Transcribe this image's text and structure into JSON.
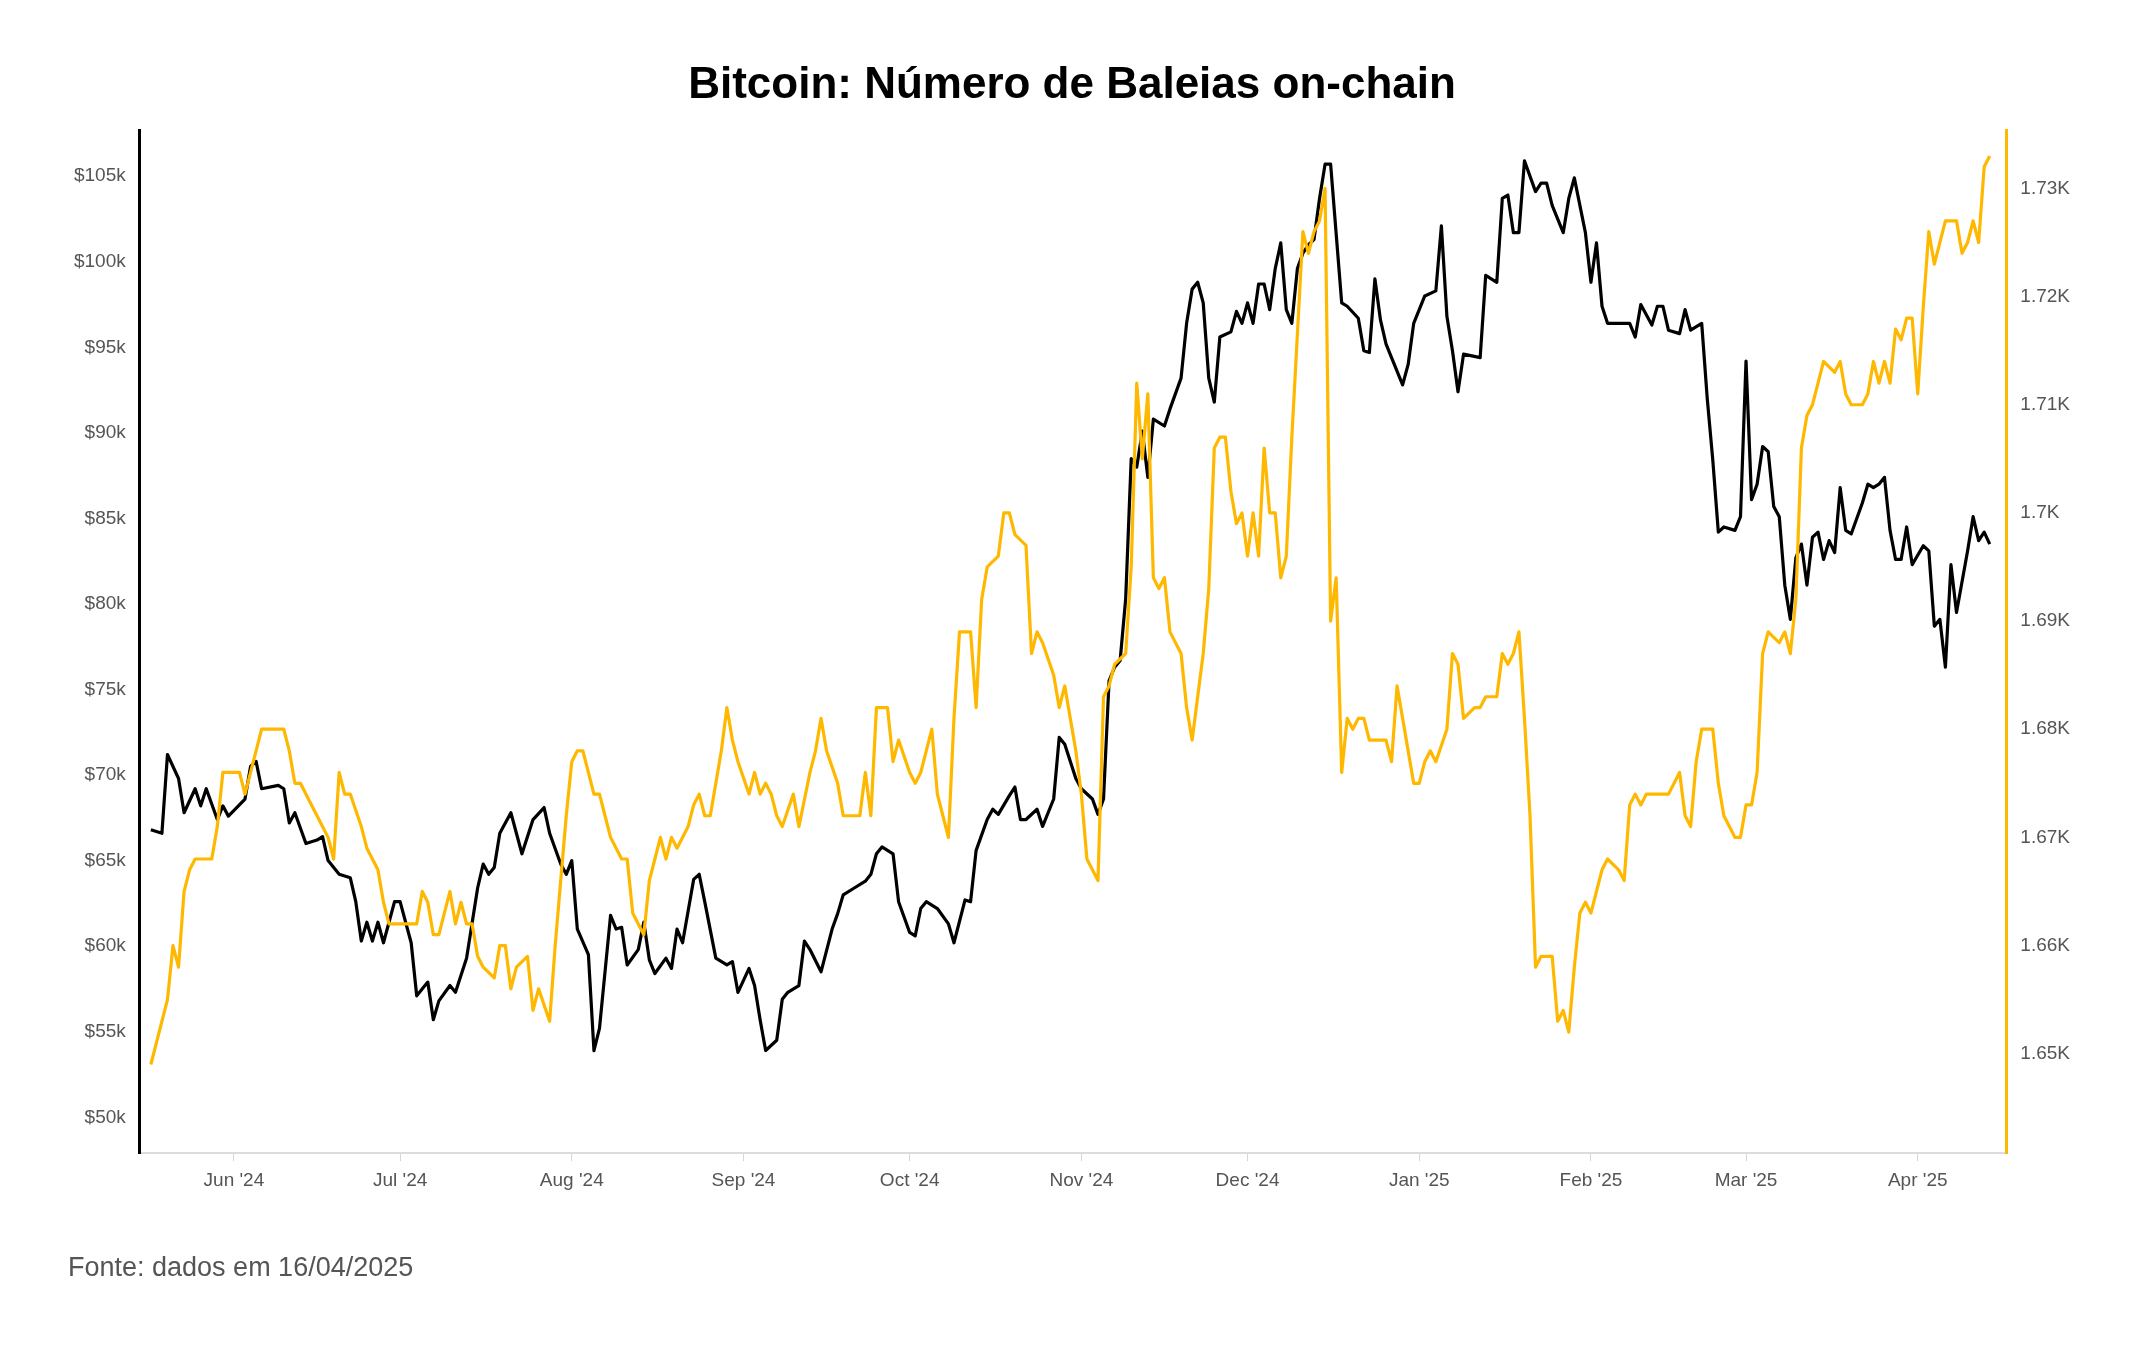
{
  "chart_data": {
    "type": "line",
    "title": "Bitcoin: Número de Baleias on-chain",
    "annotations": [
      "Fonte: dados em 16/04/2025"
    ],
    "xlim": [
      "2024-05-15",
      "2025-04-17"
    ],
    "xticks": [
      {
        "value": "2024-06-01",
        "label": "Jun '24"
      },
      {
        "value": "2024-07-01",
        "label": "Jul '24"
      },
      {
        "value": "2024-08-01",
        "label": "Aug '24"
      },
      {
        "value": "2024-09-01",
        "label": "Sep '24"
      },
      {
        "value": "2024-10-01",
        "label": "Oct '24"
      },
      {
        "value": "2024-11-01",
        "label": "Nov '24"
      },
      {
        "value": "2024-12-01",
        "label": "Dec '24"
      },
      {
        "value": "2025-01-01",
        "label": "Jan '25"
      },
      {
        "value": "2025-02-01",
        "label": "Feb '25"
      },
      {
        "value": "2025-03-01",
        "label": "Mar '25"
      },
      {
        "value": "2025-04-01",
        "label": "Apr '25"
      }
    ],
    "ylim": [
      47.9,
      107.7
    ],
    "yticks": [
      {
        "value": 50,
        "label": "$50k"
      },
      {
        "value": 55,
        "label": "$55k"
      },
      {
        "value": 60,
        "label": "$60k"
      },
      {
        "value": 65,
        "label": "$65k"
      },
      {
        "value": 70,
        "label": "$70k"
      },
      {
        "value": 75,
        "label": "$75k"
      },
      {
        "value": 80,
        "label": "$80k"
      },
      {
        "value": 85,
        "label": "$85k"
      },
      {
        "value": 90,
        "label": "$90k"
      },
      {
        "value": 95,
        "label": "$95k"
      },
      {
        "value": 100,
        "label": "$100k"
      },
      {
        "value": 105,
        "label": "$105k"
      }
    ],
    "y2lim": [
      1.6408,
      1.7354
    ],
    "y2ticks": [
      {
        "value": 1.65,
        "label": "1.65K"
      },
      {
        "value": 1.66,
        "label": "1.66K"
      },
      {
        "value": 1.67,
        "label": "1.67K"
      },
      {
        "value": 1.68,
        "label": "1.68K"
      },
      {
        "value": 1.69,
        "label": "1.69K"
      },
      {
        "value": 1.7,
        "label": "1.7K"
      },
      {
        "value": 1.71,
        "label": "1.71K"
      },
      {
        "value": 1.72,
        "label": "1.72K"
      },
      {
        "value": 1.73,
        "label": "1.73K"
      }
    ],
    "series": [
      {
        "color": "#ffb800",
        "axis": "y2",
        "x": [
          "2024-05-17",
          "2024-05-18",
          "2024-05-19",
          "2024-05-20",
          "2024-05-21",
          "2024-05-22",
          "2024-05-23",
          "2024-05-24",
          "2024-05-25",
          "2024-05-28",
          "2024-05-29",
          "2024-05-30",
          "2024-05-31",
          "2024-06-02",
          "2024-06-03",
          "2024-06-05",
          "2024-06-06",
          "2024-06-10",
          "2024-06-11",
          "2024-06-12",
          "2024-06-13",
          "2024-06-15",
          "2024-06-16",
          "2024-06-18",
          "2024-06-19",
          "2024-06-20",
          "2024-06-21",
          "2024-06-22",
          "2024-06-24",
          "2024-06-25",
          "2024-06-27",
          "2024-06-28",
          "2024-06-29",
          "2024-06-30",
          "2024-07-02",
          "2024-07-03",
          "2024-07-04",
          "2024-07-05",
          "2024-07-06",
          "2024-07-07",
          "2024-07-08",
          "2024-07-10",
          "2024-07-11",
          "2024-07-12",
          "2024-07-13",
          "2024-07-14",
          "2024-07-15",
          "2024-07-16",
          "2024-07-18",
          "2024-07-19",
          "2024-07-20",
          "2024-07-21",
          "2024-07-22",
          "2024-07-24",
          "2024-07-25",
          "2024-07-26",
          "2024-07-28",
          "2024-07-29",
          "2024-07-30",
          "2024-07-31",
          "2024-08-01",
          "2024-08-02",
          "2024-08-03",
          "2024-08-05",
          "2024-08-06",
          "2024-08-07",
          "2024-08-08",
          "2024-08-10",
          "2024-08-11",
          "2024-08-12",
          "2024-08-13",
          "2024-08-14",
          "2024-08-15",
          "2024-08-16",
          "2024-08-17",
          "2024-08-18",
          "2024-08-19",
          "2024-08-20",
          "2024-08-22",
          "2024-08-23",
          "2024-08-24",
          "2024-08-25",
          "2024-08-26",
          "2024-08-28",
          "2024-08-29",
          "2024-08-30",
          "2024-08-31",
          "2024-09-02",
          "2024-09-03",
          "2024-09-04",
          "2024-09-05",
          "2024-09-06",
          "2024-09-07",
          "2024-09-08",
          "2024-09-10",
          "2024-09-11",
          "2024-09-13",
          "2024-09-14",
          "2024-09-15",
          "2024-09-16",
          "2024-09-18",
          "2024-09-19",
          "2024-09-22",
          "2024-09-23",
          "2024-09-24",
          "2024-09-25",
          "2024-09-27",
          "2024-09-28",
          "2024-09-29",
          "2024-10-01",
          "2024-10-02",
          "2024-10-03",
          "2024-10-05",
          "2024-10-06",
          "2024-10-07",
          "2024-10-08",
          "2024-10-09",
          "2024-10-10",
          "2024-10-12",
          "2024-10-13",
          "2024-10-14",
          "2024-10-15",
          "2024-10-17",
          "2024-10-18",
          "2024-10-19",
          "2024-10-20",
          "2024-10-22",
          "2024-10-23",
          "2024-10-24",
          "2024-10-25",
          "2024-10-27",
          "2024-10-28",
          "2024-10-29",
          "2024-10-30",
          "2024-10-31",
          "2024-11-01",
          "2024-11-02",
          "2024-11-04",
          "2024-11-05",
          "2024-11-06",
          "2024-11-07",
          "2024-11-09",
          "2024-11-10",
          "2024-11-11",
          "2024-11-12",
          "2024-11-13",
          "2024-11-14",
          "2024-11-15",
          "2024-11-16",
          "2024-11-17",
          "2024-11-19",
          "2024-11-20",
          "2024-11-21",
          "2024-11-23",
          "2024-11-24",
          "2024-11-25",
          "2024-11-26",
          "2024-11-27",
          "2024-11-28",
          "2024-11-29",
          "2024-11-30",
          "2024-12-01",
          "2024-12-02",
          "2024-12-03",
          "2024-12-04",
          "2024-12-05",
          "2024-12-06",
          "2024-12-07",
          "2024-12-08",
          "2024-12-09",
          "2024-12-11",
          "2024-12-12",
          "2024-12-13",
          "2024-12-14",
          "2024-12-15",
          "2024-12-16",
          "2024-12-17",
          "2024-12-18",
          "2024-12-19",
          "2024-12-20",
          "2024-12-21",
          "2024-12-22",
          "2024-12-23",
          "2024-12-25",
          "2024-12-26",
          "2024-12-27",
          "2024-12-28",
          "2024-12-29",
          "2024-12-31",
          "2025-01-01",
          "2025-01-02",
          "2025-01-03",
          "2025-01-04",
          "2025-01-06",
          "2025-01-07",
          "2025-01-08",
          "2025-01-09",
          "2025-01-11",
          "2025-01-12",
          "2025-01-13",
          "2025-01-15",
          "2025-01-16",
          "2025-01-17",
          "2025-01-18",
          "2025-01-19",
          "2025-01-20",
          "2025-01-21",
          "2025-01-22",
          "2025-01-23",
          "2025-01-25",
          "2025-01-26",
          "2025-01-27",
          "2025-01-28",
          "2025-01-29",
          "2025-01-30",
          "2025-01-31",
          "2025-02-01",
          "2025-02-02",
          "2025-02-03",
          "2025-02-04",
          "2025-02-06",
          "2025-02-07",
          "2025-02-08",
          "2025-02-09",
          "2025-02-10",
          "2025-02-11",
          "2025-02-12",
          "2025-02-13",
          "2025-02-14",
          "2025-02-15",
          "2025-02-17",
          "2025-02-18",
          "2025-02-19",
          "2025-02-20",
          "2025-02-21",
          "2025-02-23",
          "2025-02-24",
          "2025-02-25",
          "2025-02-26",
          "2025-02-27",
          "2025-02-28",
          "2025-03-01",
          "2025-03-02",
          "2025-03-03",
          "2025-03-04",
          "2025-03-05",
          "2025-03-07",
          "2025-03-08",
          "2025-03-09",
          "2025-03-10",
          "2025-03-11",
          "2025-03-12",
          "2025-03-13",
          "2025-03-14",
          "2025-03-15",
          "2025-03-17",
          "2025-03-18",
          "2025-03-19",
          "2025-03-20",
          "2025-03-22",
          "2025-03-23",
          "2025-03-24",
          "2025-03-25",
          "2025-03-26",
          "2025-03-27",
          "2025-03-28",
          "2025-03-29",
          "2025-03-30",
          "2025-03-31",
          "2025-04-01",
          "2025-04-02",
          "2025-04-03",
          "2025-04-04",
          "2025-04-05",
          "2025-04-06",
          "2025-04-08",
          "2025-04-09",
          "2025-04-10",
          "2025-04-11",
          "2025-04-12",
          "2025-04-13",
          "2025-04-14"
        ],
        "values": [
          1.649,
          1.651,
          1.653,
          1.655,
          1.66,
          1.658,
          1.665,
          1.667,
          1.668,
          1.668,
          1.671,
          1.676,
          1.676,
          1.676,
          1.674,
          1.678,
          1.68,
          1.68,
          1.678,
          1.675,
          1.675,
          1.673,
          1.672,
          1.67,
          1.668,
          1.676,
          1.674,
          1.674,
          1.671,
          1.669,
          1.667,
          1.664,
          1.662,
          1.662,
          1.662,
          1.662,
          1.662,
          1.665,
          1.664,
          1.661,
          1.661,
          1.665,
          1.662,
          1.664,
          1.662,
          1.662,
          1.659,
          1.658,
          1.657,
          1.66,
          1.66,
          1.656,
          1.658,
          1.659,
          1.654,
          1.656,
          1.653,
          1.66,
          1.666,
          1.672,
          1.677,
          1.678,
          1.678,
          1.674,
          1.674,
          1.672,
          1.67,
          1.668,
          1.668,
          1.663,
          1.662,
          1.661,
          1.666,
          1.668,
          1.67,
          1.668,
          1.67,
          1.669,
          1.671,
          1.673,
          1.674,
          1.672,
          1.672,
          1.678,
          1.682,
          1.679,
          1.677,
          1.674,
          1.676,
          1.674,
          1.675,
          1.674,
          1.672,
          1.671,
          1.674,
          1.671,
          1.676,
          1.678,
          1.681,
          1.678,
          1.675,
          1.672,
          1.672,
          1.676,
          1.672,
          1.682,
          1.682,
          1.677,
          1.679,
          1.676,
          1.675,
          1.676,
          1.68,
          1.674,
          1.672,
          1.67,
          1.681,
          1.689,
          1.689,
          1.682,
          1.692,
          1.695,
          1.696,
          1.7,
          1.7,
          1.698,
          1.697,
          1.687,
          1.689,
          1.688,
          1.685,
          1.682,
          1.684,
          1.681,
          1.678,
          1.674,
          1.668,
          1.666,
          1.683,
          1.684,
          1.686,
          1.687,
          1.695,
          1.712,
          1.705,
          1.711,
          1.694,
          1.693,
          1.694,
          1.689,
          1.687,
          1.682,
          1.679,
          1.687,
          1.693,
          1.706,
          1.707,
          1.707,
          1.702,
          1.699,
          1.7,
          1.696,
          1.7,
          1.696,
          1.706,
          1.7,
          1.7,
          1.694,
          1.696,
          1.707,
          1.726,
          1.724,
          1.726,
          1.727,
          1.73,
          1.69,
          1.694,
          1.676,
          1.681,
          1.68,
          1.681,
          1.681,
          1.679,
          1.679,
          1.679,
          1.677,
          1.684,
          1.681,
          1.675,
          1.675,
          1.677,
          1.678,
          1.677,
          1.68,
          1.687,
          1.686,
          1.681,
          1.682,
          1.682,
          1.683,
          1.683,
          1.687,
          1.686,
          1.687,
          1.689,
          1.681,
          1.672,
          1.658,
          1.659,
          1.659,
          1.653,
          1.654,
          1.652,
          1.658,
          1.663,
          1.664,
          1.663,
          1.665,
          1.667,
          1.668,
          1.667,
          1.666,
          1.673,
          1.674,
          1.673,
          1.674,
          1.674,
          1.674,
          1.674,
          1.674,
          1.676,
          1.672,
          1.671,
          1.677,
          1.68,
          1.68,
          1.675,
          1.672,
          1.671,
          1.67,
          1.67,
          1.673,
          1.673,
          1.676,
          1.687,
          1.689,
          1.688,
          1.689,
          1.687,
          1.692,
          1.706,
          1.709,
          1.71,
          1.712,
          1.714,
          1.713,
          1.714,
          1.711,
          1.71,
          1.71,
          1.711,
          1.714,
          1.712,
          1.714,
          1.712,
          1.717,
          1.716,
          1.718,
          1.718,
          1.711,
          1.719,
          1.726,
          1.723,
          1.725,
          1.727,
          1.727,
          1.724,
          1.725,
          1.727,
          1.725,
          1.732,
          1.733
        ]
      },
      {
        "color": "#000000",
        "x": [
          "2024-05-17",
          "2024-05-19",
          "2024-05-20",
          "2024-05-22",
          "2024-05-23",
          "2024-05-25",
          "2024-05-26",
          "2024-05-27",
          "2024-05-29",
          "2024-05-30",
          "2024-05-31",
          "2024-06-03",
          "2024-06-04",
          "2024-06-05",
          "2024-06-06",
          "2024-06-09",
          "2024-06-10",
          "2024-06-11",
          "2024-06-12",
          "2024-06-14",
          "2024-06-16",
          "2024-06-17",
          "2024-06-18",
          "2024-06-20",
          "2024-06-22",
          "2024-06-23",
          "2024-06-24",
          "2024-06-25",
          "2024-06-26",
          "2024-06-27",
          "2024-06-28",
          "2024-06-30",
          "2024-07-01",
          "2024-07-03",
          "2024-07-04",
          "2024-07-06",
          "2024-07-07",
          "2024-07-08",
          "2024-07-10",
          "2024-07-11",
          "2024-07-13",
          "2024-07-15",
          "2024-07-16",
          "2024-07-17",
          "2024-07-18",
          "2024-07-19",
          "2024-07-21",
          "2024-07-22",
          "2024-07-23",
          "2024-07-25",
          "2024-07-27",
          "2024-07-28",
          "2024-07-30",
          "2024-07-31",
          "2024-08-01",
          "2024-08-02",
          "2024-08-04",
          "2024-08-05",
          "2024-08-06",
          "2024-08-08",
          "2024-08-09",
          "2024-08-10",
          "2024-08-11",
          "2024-08-13",
          "2024-08-14",
          "2024-08-15",
          "2024-08-16",
          "2024-08-18",
          "2024-08-19",
          "2024-08-20",
          "2024-08-21",
          "2024-08-23",
          "2024-08-24",
          "2024-08-25",
          "2024-08-27",
          "2024-08-29",
          "2024-08-30",
          "2024-08-31",
          "2024-09-02",
          "2024-09-03",
          "2024-09-04",
          "2024-09-05",
          "2024-09-07",
          "2024-09-08",
          "2024-09-09",
          "2024-09-11",
          "2024-09-12",
          "2024-09-13",
          "2024-09-15",
          "2024-09-17",
          "2024-09-18",
          "2024-09-19",
          "2024-09-21",
          "2024-09-23",
          "2024-09-24",
          "2024-09-25",
          "2024-09-26",
          "2024-09-28",
          "2024-09-29",
          "2024-10-01",
          "2024-10-02",
          "2024-10-03",
          "2024-10-04",
          "2024-10-06",
          "2024-10-08",
          "2024-10-09",
          "2024-10-11",
          "2024-10-12",
          "2024-10-13",
          "2024-10-15",
          "2024-10-16",
          "2024-10-17",
          "2024-10-19",
          "2024-10-20",
          "2024-10-21",
          "2024-10-22",
          "2024-10-24",
          "2024-10-25",
          "2024-10-27",
          "2024-10-28",
          "2024-10-29",
          "2024-10-31",
          "2024-11-01",
          "2024-11-03",
          "2024-11-04",
          "2024-11-05",
          "2024-11-06",
          "2024-11-07",
          "2024-11-08",
          "2024-11-09",
          "2024-11-10",
          "2024-11-11",
          "2024-11-12",
          "2024-11-13",
          "2024-11-14",
          "2024-11-16",
          "2024-11-17",
          "2024-11-19",
          "2024-11-20",
          "2024-11-21",
          "2024-11-22",
          "2024-11-23",
          "2024-11-24",
          "2024-11-25",
          "2024-11-26",
          "2024-11-28",
          "2024-11-29",
          "2024-11-30",
          "2024-12-01",
          "2024-12-02",
          "2024-12-03",
          "2024-12-04",
          "2024-12-05",
          "2024-12-06",
          "2024-12-07",
          "2024-12-08",
          "2024-12-09",
          "2024-12-10",
          "2024-12-11",
          "2024-12-12",
          "2024-12-13",
          "2024-12-14",
          "2024-12-15",
          "2024-12-16",
          "2024-12-18",
          "2024-12-19",
          "2024-12-21",
          "2024-12-22",
          "2024-12-23",
          "2024-12-24",
          "2024-12-25",
          "2024-12-26",
          "2024-12-27",
          "2024-12-29",
          "2024-12-30",
          "2024-12-31",
          "2025-01-02",
          "2025-01-04",
          "2025-01-05",
          "2025-01-06",
          "2025-01-07",
          "2025-01-08",
          "2025-01-09",
          "2025-01-12",
          "2025-01-13",
          "2025-01-15",
          "2025-01-16",
          "2025-01-17",
          "2025-01-18",
          "2025-01-19",
          "2025-01-20",
          "2025-01-22",
          "2025-01-23",
          "2025-01-24",
          "2025-01-25",
          "2025-01-27",
          "2025-01-28",
          "2025-01-29",
          "2025-01-31",
          "2025-02-01",
          "2025-02-02",
          "2025-02-03",
          "2025-02-04",
          "2025-02-07",
          "2025-02-08",
          "2025-02-09",
          "2025-02-10",
          "2025-02-12",
          "2025-02-13",
          "2025-02-14",
          "2025-02-15",
          "2025-02-17",
          "2025-02-18",
          "2025-02-19",
          "2025-02-21",
          "2025-02-22",
          "2025-02-23",
          "2025-02-24",
          "2025-02-25",
          "2025-02-27",
          "2025-02-28",
          "2025-03-01",
          "2025-03-02",
          "2025-03-03",
          "2025-03-04",
          "2025-03-05",
          "2025-03-06",
          "2025-03-07",
          "2025-03-08",
          "2025-03-09",
          "2025-03-10",
          "2025-03-11",
          "2025-03-12",
          "2025-03-13",
          "2025-03-14",
          "2025-03-15",
          "2025-03-16",
          "2025-03-17",
          "2025-03-18",
          "2025-03-19",
          "2025-03-20",
          "2025-03-22",
          "2025-03-23",
          "2025-03-24",
          "2025-03-25",
          "2025-03-26",
          "2025-03-27",
          "2025-03-28",
          "2025-03-29",
          "2025-03-30",
          "2025-03-31",
          "2025-04-02",
          "2025-04-03",
          "2025-04-04",
          "2025-04-05",
          "2025-04-06",
          "2025-04-07",
          "2025-04-08",
          "2025-04-10",
          "2025-04-11",
          "2025-04-12",
          "2025-04-13",
          "2025-04-14"
        ],
        "values": [
          66.8,
          66.6,
          71.2,
          69.8,
          67.8,
          69.2,
          68.2,
          69.2,
          67.4,
          68.2,
          67.6,
          68.6,
          70.5,
          70.8,
          69.2,
          69.4,
          69.2,
          67.2,
          67.8,
          66.0,
          66.2,
          66.4,
          65.0,
          64.2,
          64.0,
          62.6,
          60.3,
          61.4,
          60.3,
          61.4,
          60.2,
          62.6,
          62.6,
          60.2,
          57.1,
          57.9,
          55.7,
          56.8,
          57.7,
          57.3,
          59.3,
          63.4,
          64.8,
          64.2,
          64.6,
          66.6,
          67.8,
          66.6,
          65.4,
          67.4,
          68.1,
          66.6,
          64.8,
          64.2,
          65.0,
          61.0,
          59.5,
          53.9,
          55.2,
          61.8,
          61.0,
          61.1,
          58.9,
          59.8,
          61.4,
          59.2,
          58.4,
          59.3,
          58.7,
          61.0,
          60.2,
          63.9,
          64.2,
          62.6,
          59.3,
          58.9,
          59.1,
          57.3,
          58.7,
          57.7,
          55.7,
          53.9,
          54.5,
          56.9,
          57.3,
          57.7,
          60.3,
          59.8,
          58.5,
          61.0,
          61.9,
          63.0,
          63.4,
          63.8,
          64.2,
          65.4,
          65.8,
          65.4,
          62.6,
          60.8,
          60.6,
          62.2,
          62.6,
          62.2,
          61.3,
          60.2,
          62.7,
          62.6,
          65.6,
          67.4,
          68.0,
          67.7,
          68.8,
          69.3,
          67.4,
          67.4,
          68.0,
          67.0,
          68.6,
          72.2,
          71.8,
          69.8,
          69.2,
          68.6,
          67.7,
          68.6,
          75.5,
          76.3,
          76.7,
          80.3,
          88.5,
          88.0,
          90.1,
          87.4,
          90.8,
          90.4,
          91.4,
          93.2,
          96.4,
          98.4,
          98.8,
          97.6,
          93.2,
          91.8,
          95.6,
          95.9,
          97.1,
          96.4,
          97.6,
          96.4,
          98.7,
          98.7,
          97.2,
          99.6,
          101.1,
          97.2,
          96.4,
          99.6,
          100.5,
          101.0,
          101.3,
          103.7,
          105.7,
          105.7,
          97.6,
          97.4,
          96.7,
          94.8,
          94.7,
          99.0,
          96.6,
          95.2,
          94.4,
          92.8,
          94.0,
          96.4,
          98.0,
          98.3,
          102.1,
          96.8,
          94.8,
          92.4,
          94.6,
          94.4,
          99.2,
          98.8,
          103.7,
          103.9,
          101.7,
          101.7,
          105.9,
          104.1,
          104.6,
          104.6,
          103.3,
          101.7,
          103.7,
          104.9,
          101.7,
          98.8,
          101.1,
          97.4,
          96.4,
          96.4,
          96.4,
          95.6,
          97.5,
          96.3,
          97.4,
          97.4,
          96.0,
          95.8,
          97.2,
          96.0,
          96.4,
          92.0,
          88.4,
          84.2,
          84.5,
          84.3,
          85.1,
          94.2,
          86.1,
          87.0,
          89.2,
          88.9,
          85.7,
          85.1,
          81.1,
          79.1,
          82.7,
          83.5,
          81.1,
          83.9,
          84.2,
          82.6,
          83.7,
          83.0,
          86.8,
          84.3,
          84.1,
          85.9,
          87.0,
          86.8,
          87.0,
          87.4,
          84.3,
          82.6,
          82.6,
          84.5,
          82.3,
          83.4,
          83.1,
          78.7,
          79.1,
          76.3,
          82.3,
          79.5,
          83.1,
          85.1,
          83.7,
          84.2,
          83.5
        ]
      }
    ]
  }
}
